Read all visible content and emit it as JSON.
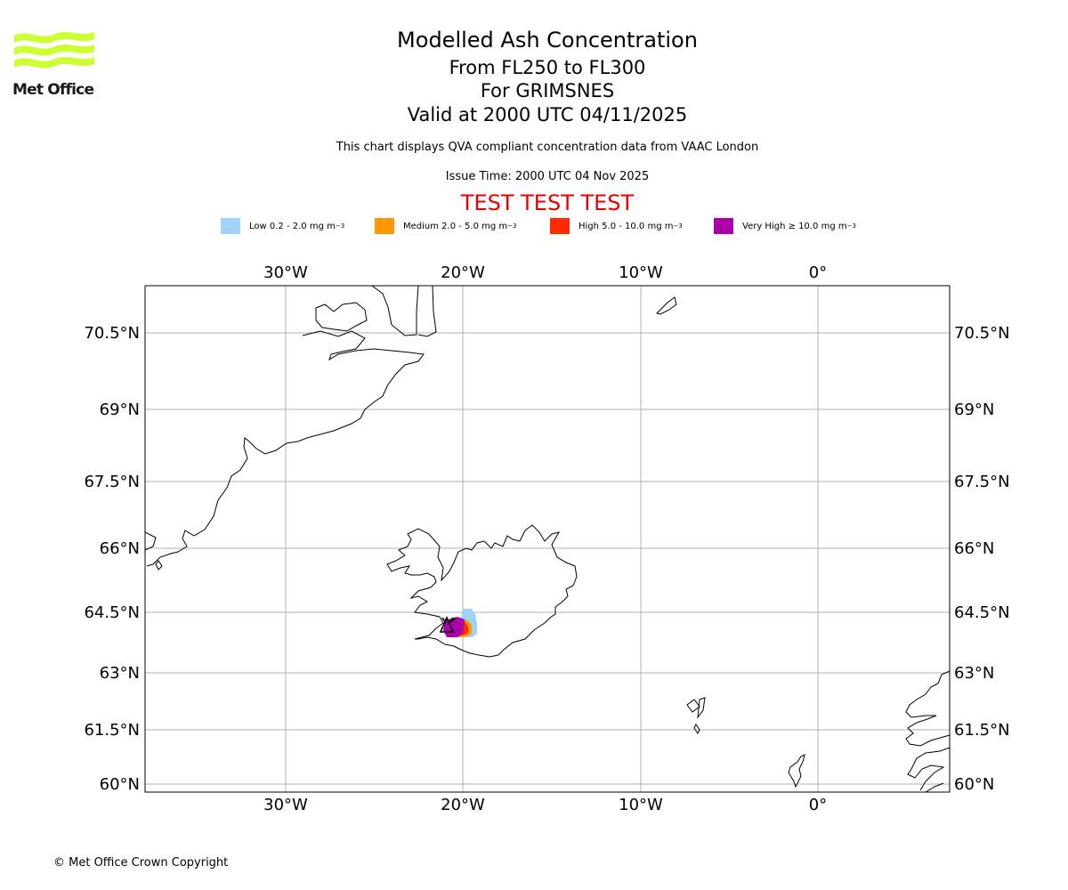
{
  "logo": {
    "text": "Met Office",
    "color": "#ccff33"
  },
  "header": {
    "title": "Modelled Ash Concentration",
    "flight_levels": "From FL250 to FL300",
    "volcano": "For GRIMSNES",
    "valid_time": "Valid at 2000 UTC 04/11/2025",
    "description": "This chart displays QVA compliant concentration data from VAAC London",
    "issue_time": "Issue Time: 2000 UTC 04 Nov 2025",
    "test_banner": "TEST TEST TEST"
  },
  "legend": [
    {
      "label": "Low 0.2 - 2.0 mg m",
      "unit_exp": "−3",
      "color": "#a0d3fa"
    },
    {
      "label": "Medium 2.0 - 5.0 mg m",
      "unit_exp": "−3",
      "color": "#ff9900"
    },
    {
      "label": "High 5.0 - 10.0 mg m",
      "unit_exp": "−3",
      "color": "#ff2a00"
    },
    {
      "label": "Very High  ≥  10.0 mg m",
      "unit_exp": "−3",
      "color": "#aa00aa"
    }
  ],
  "map": {
    "lon_labels": [
      "30°W",
      "20°W",
      "10°W",
      "0°"
    ],
    "lat_labels": [
      "70.5°N",
      "69°N",
      "67.5°N",
      "66°N",
      "64.5°N",
      "63°N",
      "61.5°N",
      "60°N"
    ],
    "volcano_marker": "Grimsnes"
  },
  "footer": {
    "copyright": "© Met Office Crown Copyright"
  }
}
